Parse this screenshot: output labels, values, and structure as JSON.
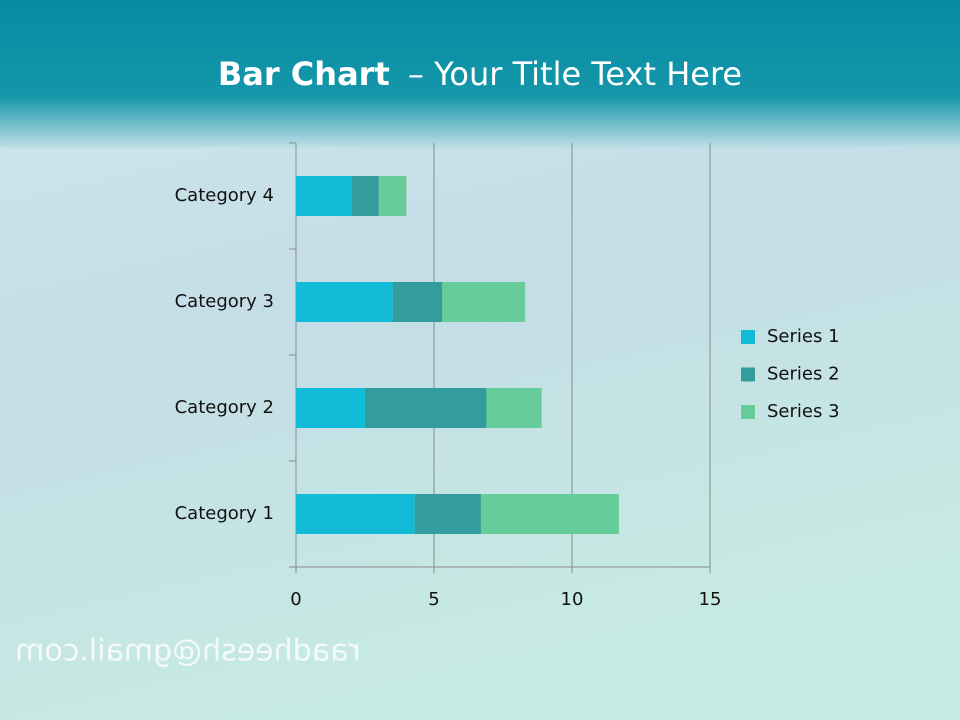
{
  "chart_data": {
    "type": "stacked-bar-horizontal",
    "title_parts": [
      "Bar Chart",
      "– Your Title Text Here"
    ],
    "categories": [
      "Category 1",
      "Category 2",
      "Category 3",
      "Category 4"
    ],
    "series": [
      {
        "name": "Series 1",
        "color": "#12bcd8",
        "values": [
          4.3,
          2.5,
          3.5,
          2
        ]
      },
      {
        "name": "Series 2",
        "color": "#339c9c",
        "values": [
          2.4,
          4.4,
          1.8,
          1
        ]
      },
      {
        "name": "Series 3",
        "color": "#66cc99",
        "values": [
          5,
          2,
          3,
          1
        ]
      }
    ],
    "xlim": [
      0,
      15
    ],
    "xticks": [
      0,
      5,
      10,
      15
    ],
    "grid": true,
    "legend": "right",
    "watermark": "raadheesh@gmail.com"
  }
}
